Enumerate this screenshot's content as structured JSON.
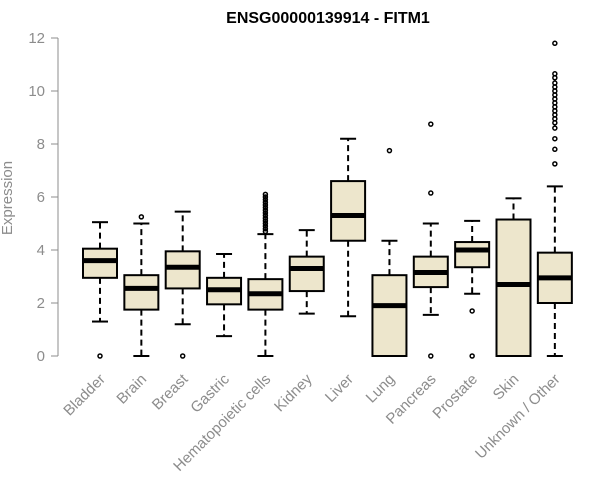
{
  "chart_data": {
    "type": "boxplot",
    "title": "ENSG00000139914 - FITM1",
    "xlabel": "",
    "ylabel": "Expression",
    "ylim": [
      0,
      12
    ],
    "yticks": [
      0,
      2,
      4,
      6,
      8,
      10,
      12
    ],
    "grid": false,
    "legend": "none",
    "colors": {
      "box_fill": "#ede6cc",
      "box_stroke": "#000000",
      "axis": "#8c8c8c",
      "label": "#8c8c8c"
    },
    "categories": [
      "Bladder",
      "Brain",
      "Breast",
      "Gastric",
      "Hematopoietic cells",
      "Kidney",
      "Liver",
      "Lung",
      "Pancreas",
      "Prostate",
      "Skin",
      "Unknown / Other"
    ],
    "boxes": [
      {
        "whisker_low": 1.3,
        "q1": 2.95,
        "median": 3.6,
        "q3": 4.05,
        "whisker_high": 5.05,
        "outliers": [
          0.0
        ]
      },
      {
        "whisker_low": 0.0,
        "q1": 1.75,
        "median": 2.55,
        "q3": 3.05,
        "whisker_high": 5.0,
        "outliers": [
          5.25
        ]
      },
      {
        "whisker_low": 1.2,
        "q1": 2.55,
        "median": 3.35,
        "q3": 3.95,
        "whisker_high": 5.45,
        "outliers": [
          0.0
        ]
      },
      {
        "whisker_low": 0.75,
        "q1": 1.95,
        "median": 2.5,
        "q3": 2.95,
        "whisker_high": 3.85,
        "outliers": []
      },
      {
        "whisker_low": 0.0,
        "q1": 1.75,
        "median": 2.35,
        "q3": 2.9,
        "whisker_high": 4.6,
        "outliers": [
          4.7,
          4.8,
          4.9,
          5.0,
          5.1,
          5.2,
          5.3,
          5.4,
          5.5,
          5.6,
          5.7,
          5.8,
          5.9,
          6.0,
          6.1
        ]
      },
      {
        "whisker_low": 1.6,
        "q1": 2.45,
        "median": 3.3,
        "q3": 3.75,
        "whisker_high": 4.75,
        "outliers": []
      },
      {
        "whisker_low": 1.5,
        "q1": 4.35,
        "median": 5.3,
        "q3": 6.6,
        "whisker_high": 8.2,
        "outliers": []
      },
      {
        "whisker_low": 0.0,
        "q1": 0.0,
        "median": 1.9,
        "q3": 3.05,
        "whisker_high": 4.35,
        "outliers": [
          7.75
        ]
      },
      {
        "whisker_low": 1.55,
        "q1": 2.6,
        "median": 3.15,
        "q3": 3.75,
        "whisker_high": 5.0,
        "outliers": [
          0.0,
          6.15,
          8.75
        ]
      },
      {
        "whisker_low": 2.35,
        "q1": 3.35,
        "median": 4.0,
        "q3": 4.3,
        "whisker_high": 5.1,
        "outliers": [
          0.0,
          1.7
        ]
      },
      {
        "whisker_low": 0.0,
        "q1": 0.0,
        "median": 2.7,
        "q3": 5.15,
        "whisker_high": 5.95,
        "outliers": []
      },
      {
        "whisker_low": 0.0,
        "q1": 2.0,
        "median": 2.95,
        "q3": 3.9,
        "whisker_high": 6.4,
        "outliers": [
          7.25,
          7.8,
          8.2,
          8.6,
          8.8,
          8.95,
          9.1,
          9.25,
          9.4,
          9.55,
          9.7,
          9.85,
          10.0,
          10.15,
          10.3,
          10.5,
          10.65,
          11.8
        ]
      }
    ]
  }
}
